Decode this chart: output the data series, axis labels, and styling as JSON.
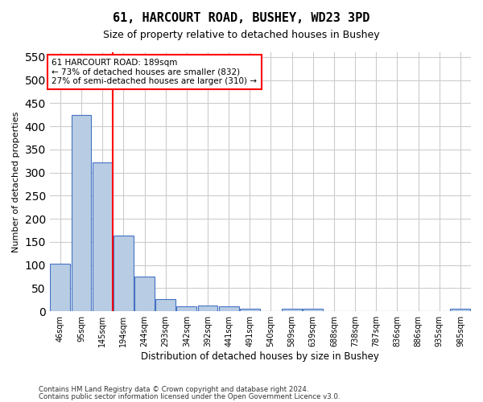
{
  "title1": "61, HARCOURT ROAD, BUSHEY, WD23 3PD",
  "title2": "Size of property relative to detached houses in Bushey",
  "xlabel": "Distribution of detached houses by size in Bushey",
  "ylabel": "Number of detached properties",
  "footer1": "Contains HM Land Registry data © Crown copyright and database right 2024.",
  "footer2": "Contains public sector information licensed under the Open Government Licence v3.0.",
  "bin_labels": [
    "46sqm",
    "95sqm",
    "145sqm",
    "194sqm",
    "244sqm",
    "293sqm",
    "342sqm",
    "392sqm",
    "441sqm",
    "491sqm",
    "540sqm",
    "589sqm",
    "639sqm",
    "688sqm",
    "738sqm",
    "787sqm",
    "836sqm",
    "886sqm",
    "935sqm",
    "985sqm"
  ],
  "bar_values": [
    103,
    425,
    322,
    163,
    75,
    26,
    11,
    12,
    11,
    6,
    0,
    5,
    5,
    0,
    0,
    0,
    0,
    0,
    0,
    5
  ],
  "bar_color": "#b8cce4",
  "bar_edge_color": "#4472c4",
  "annotation_title": "61 HARCOURT ROAD: 189sqm",
  "annotation_line2": "← 73% of detached houses are smaller (832)",
  "annotation_line3": "27% of semi-detached houses are larger (310) →",
  "ylim": [
    0,
    560
  ],
  "yticks": [
    0,
    50,
    100,
    150,
    200,
    250,
    300,
    350,
    400,
    450,
    500,
    550
  ],
  "background_color": "#ffffff",
  "grid_color": "#cccccc"
}
